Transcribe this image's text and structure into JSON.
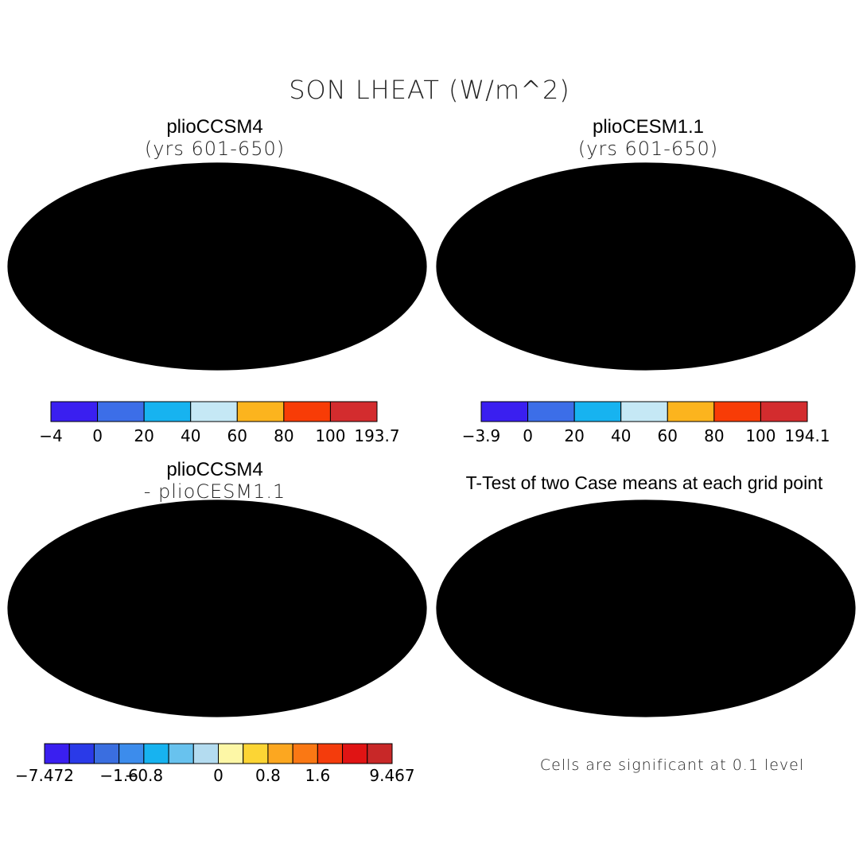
{
  "title": "SON LHEAT (W/m^2)",
  "panels": [
    {
      "id": "ccsm4",
      "title": "plioCCSM4",
      "subtitle": "(yrs 601-650)",
      "colorbar": {
        "colors": [
          "#3a1ff0",
          "#3c6ee8",
          "#17b3f0",
          "#c5e8f5",
          "#fcb41e",
          "#f83c06",
          "#d32c2e"
        ],
        "labels": [
          "-4",
          "0",
          "20",
          "40",
          "60",
          "80",
          "100",
          "193.7"
        ]
      }
    },
    {
      "id": "cesm",
      "title": "plioCESM1.1",
      "subtitle": "(yrs 601-650)",
      "colorbar": {
        "colors": [
          "#3a1ff0",
          "#3c6ee8",
          "#17b3f0",
          "#c5e8f5",
          "#fcb41e",
          "#f83c06",
          "#d32c2e"
        ],
        "labels": [
          "-3.9",
          "0",
          "20",
          "40",
          "60",
          "80",
          "100",
          "194.1"
        ]
      }
    },
    {
      "id": "diff",
      "title": "plioCCSM4",
      "subtitle": "- plioCESM1.1",
      "colorbar": {
        "colors": [
          "#3a1ff0",
          "#2a3ae8",
          "#3a6ee0",
          "#3c8cec",
          "#17b3f0",
          "#68c2ee",
          "#b4dcf0",
          "#fdf7a6",
          "#fcd534",
          "#fca720",
          "#fa7814",
          "#f43c0c",
          "#e01414",
          "#c82828"
        ],
        "labels": [
          "-7.472",
          "",
          "",
          "-1.6",
          "-0.8",
          "",
          "",
          "0",
          "",
          "0.8",
          "",
          "1.6",
          "",
          "",
          "9.467"
        ]
      }
    },
    {
      "id": "ttest",
      "title": "T-Test of two Case means at each grid point",
      "note": "Cells are significant at 0.1 level",
      "sig_color": "#ff0000"
    }
  ]
}
